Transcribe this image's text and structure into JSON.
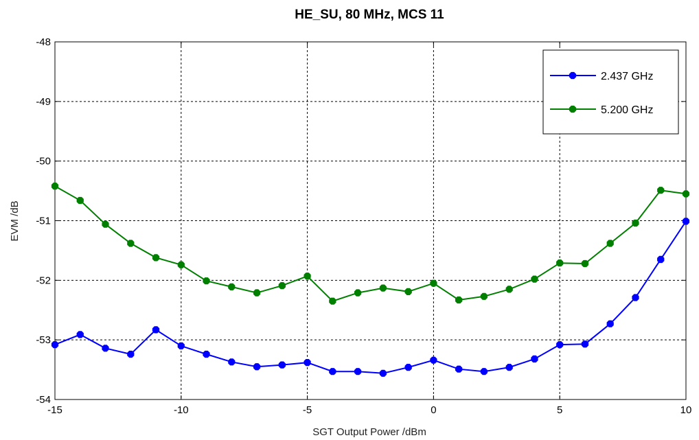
{
  "chart_data": {
    "type": "line",
    "title": "HE_SU, 80 MHz, MCS 11",
    "xlabel": "SGT Output Power /dBm",
    "ylabel": "EVM /dB",
    "xlim": [
      -15,
      10
    ],
    "ylim": [
      -54,
      -48
    ],
    "x_ticks": [
      -15,
      -10,
      -5,
      0,
      5,
      10
    ],
    "y_ticks": [
      -48,
      -49,
      -50,
      -51,
      -52,
      -53,
      -54
    ],
    "grid": true,
    "legend_position": "top-right",
    "x": [
      -15,
      -14,
      -13,
      -12,
      -11,
      -10,
      -9,
      -8,
      -7,
      -6,
      -5,
      -4,
      -3,
      -2,
      -1,
      0,
      1,
      2,
      3,
      4,
      5,
      6,
      7,
      8,
      9,
      10
    ],
    "series": [
      {
        "name": "2.437 GHz",
        "color": "#0000ff",
        "values": [
          -53.08,
          -52.91,
          -53.14,
          -53.24,
          -52.83,
          -53.1,
          -53.24,
          -53.37,
          -53.45,
          -53.42,
          -53.38,
          -53.53,
          -53.53,
          -53.56,
          -53.46,
          -53.34,
          -53.49,
          -53.53,
          -53.46,
          -53.32,
          -53.08,
          -53.07,
          -52.73,
          -52.29,
          -51.65,
          -51.01
        ]
      },
      {
        "name": "5.200 GHz",
        "color": "#007f00",
        "values": [
          -50.42,
          -50.66,
          -51.06,
          -51.38,
          -51.62,
          -51.74,
          -52.01,
          -52.11,
          -52.21,
          -52.09,
          -51.93,
          -52.35,
          -52.21,
          -52.13,
          -52.19,
          -52.05,
          -52.33,
          -52.27,
          -52.15,
          -51.98,
          -51.71,
          -51.72,
          -51.38,
          -51.04,
          -50.49,
          -50.55
        ]
      }
    ]
  }
}
